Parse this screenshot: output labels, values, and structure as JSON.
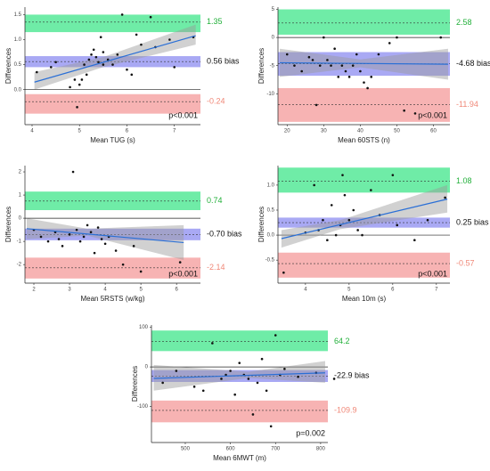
{
  "chart_data": [
    {
      "type": "scatter",
      "x_label": "Mean TUG (s)",
      "y_label": "Differences",
      "x": [
        4.1,
        4.4,
        4.5,
        4.8,
        4.9,
        4.95,
        5.0,
        5.05,
        5.1,
        5.15,
        5.2,
        5.25,
        5.3,
        5.35,
        5.4,
        5.45,
        5.5,
        5.5,
        5.6,
        5.7,
        5.8,
        5.9,
        6.0,
        6.1,
        6.2,
        6.3,
        6.5,
        6.6,
        6.9,
        7.0,
        7.4
      ],
      "values": [
        0.35,
        0.45,
        0.55,
        0.05,
        0.2,
        -0.35,
        0.1,
        0.2,
        0.5,
        0.3,
        0.6,
        0.7,
        0.8,
        0.65,
        0.55,
        1.05,
        0.5,
        0.75,
        0.6,
        0.5,
        0.7,
        1.5,
        0.4,
        0.3,
        1.1,
        0.9,
        1.45,
        0.85,
        1.0,
        0.45,
        1.05
      ],
      "xlim": [
        3.85,
        7.55
      ],
      "ylim": [
        -0.7,
        1.65
      ],
      "xticks": [
        4,
        5,
        6,
        7
      ],
      "yticks": [
        {
          "value": 1.5,
          "label": "1.5"
        },
        {
          "value": 1,
          "label": "1.0"
        },
        {
          "value": 0.5,
          "label": "0.5"
        },
        {
          "value": 0,
          "label": "0.0"
        }
      ],
      "limits": {
        "values": [
          1.35,
          0.56,
          -0.24
        ],
        "value_labels": [
          "1.35",
          "0.56 bias",
          "-0.24"
        ],
        "colors": [
          "#22b03a",
          "#111111",
          "#f08878"
        ]
      },
      "limit_bands": [
        [
          1.15,
          1.5
        ],
        [
          0.45,
          0.67
        ],
        [
          -0.48,
          -0.09
        ]
      ],
      "band_colors": [
        "#3fe58a",
        "#8c8cf0",
        "#f49a9a"
      ],
      "trend": {
        "x": [
          4.05,
          7.45
        ],
        "values": [
          0.15,
          1.08
        ]
      },
      "trend_ci": {
        "x": [
          4.05,
          5.5,
          7.45
        ],
        "lower": [
          0.0,
          0.45,
          0.9
        ],
        "upper": [
          0.35,
          0.65,
          1.3
        ]
      },
      "p_value": "p<0.001",
      "point_color": "#111111",
      "trend_color": "#2a6fd6"
    },
    {
      "type": "scatter",
      "x_label": "Mean 60STS (n)",
      "y_label": "Differences",
      "x": [
        20,
        22,
        24,
        26,
        27,
        28,
        29,
        30,
        31,
        32,
        33,
        34,
        35,
        36,
        37,
        38,
        39,
        40,
        41,
        42,
        43,
        45,
        48,
        50,
        52,
        55,
        62
      ],
      "values": [
        -3,
        -5,
        -6,
        -3.5,
        -4,
        -12,
        -5,
        0,
        -4,
        -5,
        -2,
        -7,
        -5,
        -6,
        -7,
        -5,
        -3,
        -6,
        -8,
        -9,
        -7,
        -3,
        -1,
        0,
        -13,
        -13.5,
        0
      ],
      "xlim": [
        17.5,
        64.5
      ],
      "ylim": [
        -15.5,
        5.4
      ],
      "xticks": [
        20,
        30,
        40,
        50,
        60
      ],
      "yticks": [
        5,
        0,
        -5,
        -10
      ],
      "limits": {
        "values": [
          2.58,
          -4.68,
          -11.94
        ],
        "value_labels": [
          "2.58",
          "-4.68 bias",
          "-11.94"
        ],
        "colors": [
          "#22b03a",
          "#111111",
          "#f08878"
        ]
      },
      "limit_bands": [
        [
          0.5,
          5
        ],
        [
          -6.8,
          -2.6
        ],
        [
          -15,
          -9
        ]
      ],
      "band_colors": [
        "#3fe58a",
        "#8c8cf0",
        "#f49a9a"
      ],
      "trend": {
        "x": [
          18,
          64
        ],
        "values": [
          -4.5,
          -4.75
        ]
      },
      "trend_ci": {
        "x": [
          18,
          40,
          64
        ],
        "lower": [
          -7,
          -5.3,
          -7.5
        ],
        "upper": [
          -2,
          -3.9,
          -2
        ]
      },
      "p_value": "p<0.001",
      "point_color": "#111111",
      "trend_color": "#2a6fd6"
    },
    {
      "type": "scatter",
      "x_label": "Mean 5RSTS (w/kg)",
      "y_label": "Differences",
      "x": [
        2.0,
        2.2,
        2.4,
        2.6,
        2.7,
        2.8,
        3.0,
        3.1,
        3.2,
        3.3,
        3.4,
        3.5,
        3.6,
        3.7,
        3.8,
        3.9,
        4.0,
        4.1,
        4.3,
        4.5,
        4.8,
        5.0,
        6.1
      ],
      "values": [
        -0.5,
        -0.8,
        -1.0,
        -0.6,
        -0.9,
        -1.2,
        -0.7,
        2.0,
        -0.5,
        -1.0,
        -0.8,
        -0.3,
        -0.6,
        -1.5,
        -0.4,
        -0.9,
        -1.1,
        -0.8,
        -1.4,
        -2.0,
        -1.2,
        -2.3,
        -1.9
      ],
      "xlim": [
        1.75,
        6.67
      ],
      "ylim": [
        -2.8,
        2.27
      ],
      "xticks": [
        2,
        3,
        4,
        5,
        6
      ],
      "yticks": [
        2,
        1,
        0,
        -1,
        -2
      ],
      "limits": {
        "values": [
          0.74,
          -0.7,
          -2.14
        ],
        "value_labels": [
          "0.74",
          "-0.70 bias",
          "-2.14"
        ],
        "colors": [
          "#22b03a",
          "#111111",
          "#f08878"
        ]
      },
      "limit_bands": [
        [
          0.35,
          1.15
        ],
        [
          -0.95,
          -0.45
        ],
        [
          -2.6,
          -1.7
        ]
      ],
      "band_colors": [
        "#3fe58a",
        "#8c8cf0",
        "#f49a9a"
      ],
      "trend": {
        "x": [
          1.8,
          6.2
        ],
        "values": [
          -0.45,
          -1.05
        ]
      },
      "trend_ci": {
        "x": [
          1.8,
          3.5,
          6.2
        ],
        "lower": [
          -0.9,
          -0.75,
          -1.8
        ],
        "upper": [
          0.0,
          -0.45,
          -0.3
        ]
      },
      "p_value": "p<0.001",
      "point_color": "#111111",
      "trend_color": "#2a6fd6"
    },
    {
      "type": "scatter",
      "x_label": "Mean 10m (s)",
      "y_label": "Differences",
      "x": [
        3.5,
        4.0,
        4.2,
        4.3,
        4.4,
        4.5,
        4.6,
        4.7,
        4.8,
        4.85,
        4.9,
        5.0,
        5.1,
        5.2,
        5.3,
        5.5,
        5.7,
        6.0,
        6.1,
        6.5,
        6.8,
        7.2
      ],
      "values": [
        -0.75,
        0.05,
        1.0,
        0.1,
        0.3,
        -0.1,
        0.6,
        0.0,
        0.2,
        1.2,
        0.8,
        0.3,
        0.5,
        0.1,
        0.0,
        0.9,
        0.4,
        1.2,
        0.2,
        -0.1,
        0.3,
        0.75
      ],
      "xlim": [
        3.37,
        7.31
      ],
      "ylim": [
        -0.96,
        1.39
      ],
      "xticks": [
        4,
        5,
        6,
        7
      ],
      "yticks": [
        {
          "value": 1,
          "label": "1.0"
        },
        0.5,
        {
          "value": 0,
          "label": "0.0"
        },
        -0.5
      ],
      "limits": {
        "values": [
          1.08,
          0.25,
          -0.57
        ],
        "value_labels": [
          "1.08",
          "0.25 bias",
          "-0.57"
        ],
        "colors": [
          "#22b03a",
          "#111111",
          "#f08878"
        ]
      },
      "limit_bands": [
        [
          0.85,
          1.35
        ],
        [
          0.15,
          0.35
        ],
        [
          -0.85,
          -0.35
        ]
      ],
      "band_colors": [
        "#3fe58a",
        "#8c8cf0",
        "#f49a9a"
      ],
      "trend": {
        "x": [
          3.45,
          7.25
        ],
        "values": [
          -0.07,
          0.72
        ]
      },
      "trend_ci": {
        "x": [
          3.45,
          4.8,
          7.25
        ],
        "lower": [
          -0.25,
          0.12,
          0.45
        ],
        "upper": [
          0.1,
          0.3,
          1.0
        ]
      },
      "p_value": "p<0.001",
      "point_color": "#111111",
      "trend_color": "#2a6fd6"
    },
    {
      "type": "scatter",
      "x_label": "Mean 6MWT (m)",
      "y_label": "Differences",
      "x": [
        450,
        480,
        520,
        540,
        560,
        580,
        590,
        600,
        610,
        620,
        630,
        640,
        650,
        660,
        670,
        680,
        690,
        700,
        710,
        720,
        750,
        790,
        830
      ],
      "values": [
        -40,
        -10,
        -50,
        -60,
        60,
        -30,
        -20,
        -10,
        -70,
        10,
        -20,
        -30,
        -120,
        -40,
        20,
        -60,
        -150,
        80,
        -20,
        -5,
        -25,
        -15,
        -30
      ],
      "xlim": [
        425,
        816
      ],
      "ylim": [
        -191,
        106
      ],
      "xticks": [
        500,
        600,
        700,
        800
      ],
      "yticks": [
        100,
        0,
        -100
      ],
      "limits": {
        "values": [
          64.2,
          -22.9,
          -109.9
        ],
        "value_labels": [
          "64.2",
          "-22.9 bias",
          "-109.9"
        ],
        "colors": [
          "#22b03a",
          "#111111",
          "#f08878"
        ]
      },
      "limit_bands": [
        [
          40,
          92
        ],
        [
          -38,
          -8
        ],
        [
          -140,
          -85
        ]
      ],
      "band_colors": [
        "#3fe58a",
        "#8c8cf0",
        "#f49a9a"
      ],
      "trend": {
        "x": [
          430,
          810
        ],
        "values": [
          -29,
          -15
        ]
      },
      "trend_ci": {
        "x": [
          430,
          640,
          810
        ],
        "lower": [
          -60,
          -28,
          -40
        ],
        "upper": [
          5,
          -12,
          15
        ]
      },
      "p_value": "p=0.002",
      "point_color": "#111111",
      "trend_color": "#2a6fd6"
    }
  ]
}
